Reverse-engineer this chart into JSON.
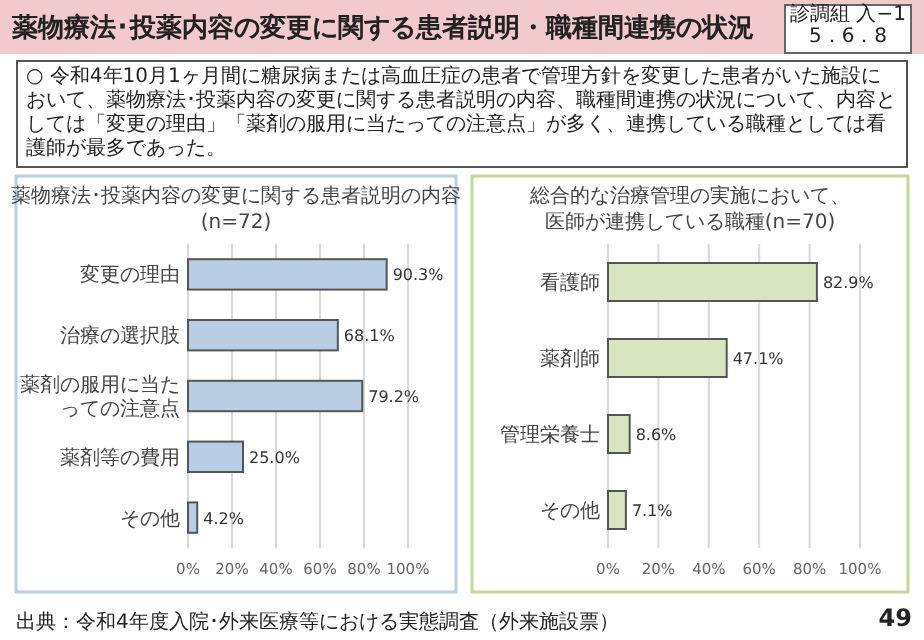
{
  "chart_data": [
    {
      "type": "bar",
      "orientation": "horizontal",
      "title": "薬物療法･投薬内容の変更に関する患者説明の内容",
      "subtitle": "(n=72)",
      "categories": [
        "変更の理由",
        "治療の選択肢",
        "薬剤の服用に当たっての注意点",
        "薬剤等の費用",
        "その他"
      ],
      "values": [
        90.3,
        68.1,
        79.2,
        25.0,
        4.2
      ],
      "value_labels": [
        "90.3%",
        "68.1%",
        "79.2%",
        "25.0%",
        "4.2%"
      ],
      "color": "#b9cde5",
      "xlim": [
        0,
        100
      ],
      "xticks": [
        {
          "value": 0,
          "label": "0%"
        },
        {
          "value": 20,
          "label": "20%"
        },
        {
          "value": 40,
          "label": "40%"
        },
        {
          "value": 60,
          "label": "60%"
        },
        {
          "value": 80,
          "label": "80%"
        },
        {
          "value": 100,
          "label": "100%"
        }
      ],
      "grid": "x",
      "annotations": [
        "薬物療法･投薬内容の変更に関する患者説明・職種間連携の状況",
        "診調組 入−1",
        "5．6．8",
        "○ 令和4年10月1ヶ月間に糖尿病または高血圧症の患者で管理方針を変更した患者がいた施設において、薬物療法･投薬内容の変更に関する患者説明の内容、職種間連携の状況について、内容としては「変更の理由」「薬剤の服用に当たっての注意点」が多く、連携している職種としては看護師が最多であった。",
        "出典：令和4年度入院･外来医療等における実態調査（外来施設票）"
      ]
    },
    {
      "type": "bar",
      "orientation": "horizontal",
      "title": "総合的な治療管理の実施において、",
      "subtitle": "医師が連携している職種(n=70)",
      "categories": [
        "看護師",
        "薬剤師",
        "管理栄養士",
        "その他"
      ],
      "values": [
        82.9,
        47.1,
        8.6,
        7.1
      ],
      "value_labels": [
        "82.9%",
        "47.1%",
        "8.6%",
        "7.1%"
      ],
      "color": "#d7e4bd",
      "xlim": [
        0,
        100
      ],
      "xticks": [
        {
          "value": 0,
          "label": "0%"
        },
        {
          "value": 20,
          "label": "20%"
        },
        {
          "value": 40,
          "label": "40%"
        },
        {
          "value": 60,
          "label": "60%"
        },
        {
          "value": 80,
          "label": "80%"
        },
        {
          "value": 100,
          "label": "100%"
        }
      ],
      "grid": "x",
      "annotations": [
        "49"
      ]
    }
  ]
}
